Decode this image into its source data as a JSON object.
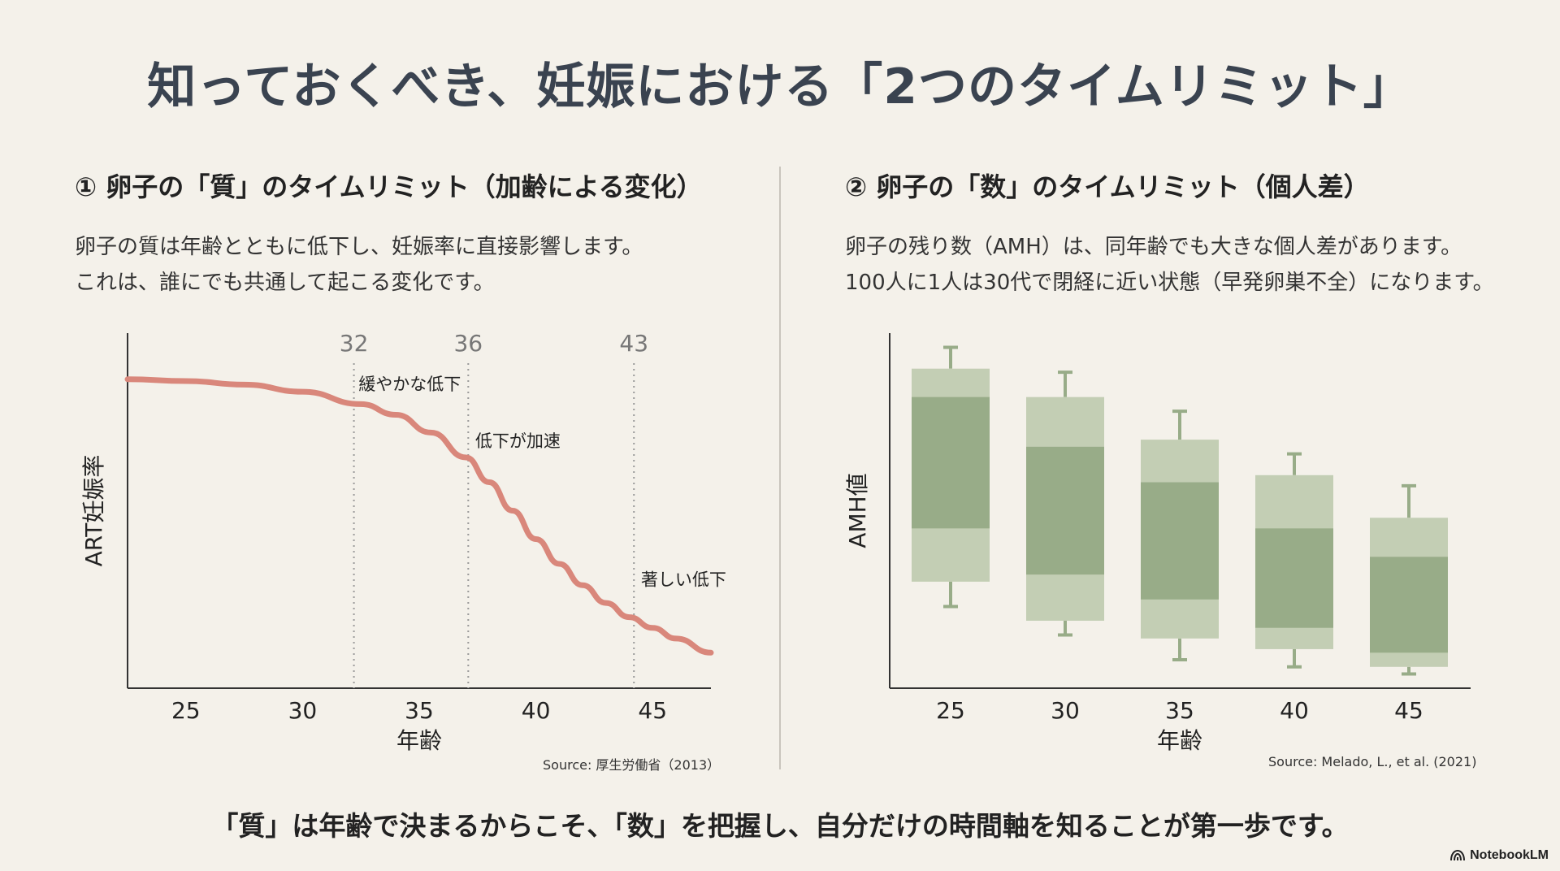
{
  "title": "知っておくべき、妊娠における「2つのタイムリミット」",
  "left": {
    "heading": "① 卵子の「質」のタイムリミット（加齢による変化）",
    "desc_line1": "卵子の質は年齢とともに低下し、妊娠率に直接影響します。",
    "desc_line2": "これは、誰にでも共通して起こる変化です。",
    "source": "Source: 厚生労働省（2013）"
  },
  "right": {
    "heading": "② 卵子の「数」のタイムリミット（個人差）",
    "desc_line1": "卵子の残り数（AMH）は、同年齢でも大きな個人差があります。",
    "desc_line2": "100人に1人は30代で閉経に近い状態（早発卵巣不全）になります。",
    "source": "Source: Melado, L., et al. (2021)"
  },
  "footer": "「質」は年齢で決まるからこそ、「数」を把握し、自分だけの時間軸を知ることが第一歩です。",
  "brand": "NotebookLM",
  "colors": {
    "curve": "#d9877b",
    "box_outer": "#c3ceb4",
    "box_inner": "#98ac88",
    "whisker": "#98ac88",
    "axis": "#333333",
    "vline": "#9a9a9a"
  },
  "chart_data": [
    {
      "type": "line",
      "title": "",
      "xlabel": "年齢",
      "ylabel": "ART妊娠率",
      "xlim": [
        22.5,
        47.5
      ],
      "ylim": [
        0,
        1
      ],
      "xticks": [
        25,
        30,
        35,
        40,
        45
      ],
      "series": [
        {
          "x": [
            22.5,
            25,
            27.5,
            30,
            32.5,
            34,
            35.5,
            37,
            38,
            39,
            40,
            41,
            42,
            43,
            44,
            45,
            46,
            47.5
          ],
          "y": [
            0.87,
            0.865,
            0.855,
            0.835,
            0.8,
            0.77,
            0.72,
            0.65,
            0.58,
            0.5,
            0.42,
            0.35,
            0.29,
            0.24,
            0.2,
            0.17,
            0.14,
            0.1
          ]
        }
      ],
      "markers": [
        {
          "x": 32.2,
          "label": "32"
        },
        {
          "x": 37.1,
          "label": "36"
        },
        {
          "x": 44.2,
          "label": "43"
        }
      ],
      "annotations": [
        {
          "text": "緩やかな低下",
          "x": 32.4,
          "y": 0.84
        },
        {
          "text": "低下が加速",
          "x": 37.4,
          "y": 0.68
        },
        {
          "text": "著しい低下",
          "x": 44.5,
          "y": 0.29
        }
      ]
    },
    {
      "type": "box",
      "title": "",
      "xlabel": "年齢",
      "ylabel": "AMH値",
      "ylim": [
        0,
        1
      ],
      "categories": [
        "25",
        "30",
        "35",
        "40",
        "45"
      ],
      "boxes": [
        {
          "min": 0.23,
          "p10": 0.3,
          "q1": 0.45,
          "q3": 0.82,
          "p90": 0.9,
          "max": 0.96
        },
        {
          "min": 0.15,
          "p10": 0.19,
          "q1": 0.32,
          "q3": 0.68,
          "p90": 0.82,
          "max": 0.89
        },
        {
          "min": 0.08,
          "p10": 0.14,
          "q1": 0.25,
          "q3": 0.58,
          "p90": 0.7,
          "max": 0.78
        },
        {
          "min": 0.06,
          "p10": 0.11,
          "q1": 0.17,
          "q3": 0.45,
          "p90": 0.6,
          "max": 0.66
        },
        {
          "min": 0.04,
          "p10": 0.06,
          "q1": 0.1,
          "q3": 0.37,
          "p90": 0.48,
          "max": 0.57
        }
      ]
    }
  ]
}
